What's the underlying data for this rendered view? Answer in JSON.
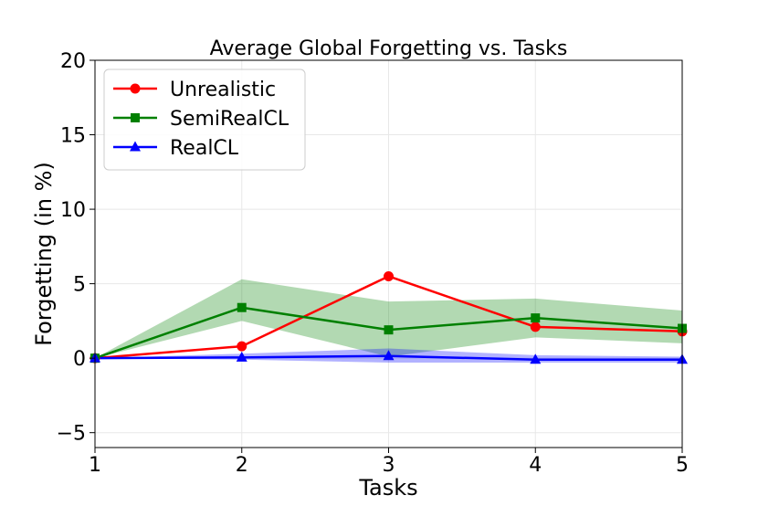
{
  "chart_data": {
    "type": "line",
    "title": "Average Global Forgetting vs. Tasks",
    "xlabel": "Tasks",
    "ylabel": "Forgetting (in %)",
    "x": [
      1,
      2,
      3,
      4,
      5
    ],
    "xticks": [
      "1",
      "2",
      "3",
      "4",
      "5"
    ],
    "yticks": [
      "−5",
      "0",
      "5",
      "10",
      "15",
      "20"
    ],
    "xlim": [
      1,
      5
    ],
    "ylim": [
      -6,
      20
    ],
    "grid": true,
    "legend_position": "top-left",
    "series": [
      {
        "name": "Unrealistic",
        "color": "#ff0000",
        "marker": "circle",
        "values": [
          0,
          0.8,
          5.5,
          2.1,
          1.8
        ]
      },
      {
        "name": "SemiRealCL",
        "color": "#008000",
        "marker": "square",
        "values": [
          0,
          3.4,
          1.9,
          2.7,
          2.0
        ],
        "band_lower": [
          0,
          2.5,
          0.1,
          1.4,
          1.0
        ],
        "band_upper": [
          0,
          5.3,
          3.8,
          4.0,
          3.2
        ],
        "band_color": "#008000"
      },
      {
        "name": "RealCL",
        "color": "#0000ff",
        "marker": "triangle",
        "values": [
          0,
          0.05,
          0.15,
          -0.1,
          -0.1
        ],
        "band_lower": [
          0,
          -0.1,
          -0.3,
          -0.3,
          -0.3
        ],
        "band_upper": [
          0,
          0.3,
          0.65,
          0.2,
          0.1
        ],
        "band_color": "#0000ff"
      }
    ]
  }
}
